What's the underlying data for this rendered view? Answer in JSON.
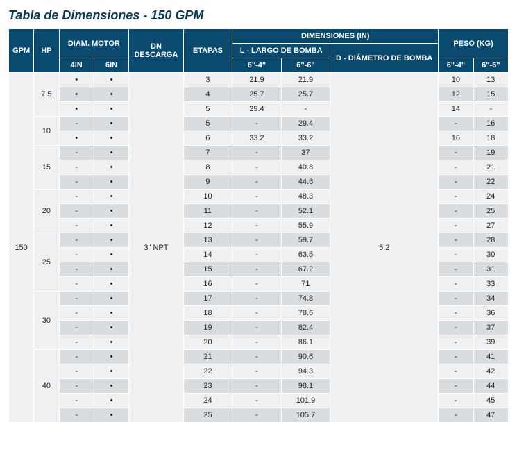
{
  "title": "Tabla de Dimensiones - 150 GPM",
  "headers": {
    "gpm": "GPM",
    "hp": "HP",
    "diam_motor": "DIAM. MOTOR",
    "dm_4in": "4IN",
    "dm_6in": "6IN",
    "dn_descarga": "DN DESCARGA",
    "etapas": "ETAPAS",
    "dimensiones": "DIMENSIONES (IN)",
    "l_largo": "L - LARGO DE BOMBA",
    "l_6_4": "6\"-4\"",
    "l_6_6": "6\"-6\"",
    "d_diam": "D - DIÁMETRO DE BOMBA",
    "peso": "PESO (KG)",
    "p_6_4": "6\"-4\"",
    "p_6_6": "6\"-6\""
  },
  "gpm_value": "150",
  "dn_value": "3\" NPT",
  "diam_value": "5.2",
  "hp_groups": [
    {
      "hp": "7.5",
      "span": 3
    },
    {
      "hp": "10",
      "span": 2
    },
    {
      "hp": "15",
      "span": 3
    },
    {
      "hp": "20",
      "span": 3
    },
    {
      "hp": "25",
      "span": 4
    },
    {
      "hp": "30",
      "span": 4
    },
    {
      "hp": "40",
      "span": 6
    }
  ],
  "rows": [
    {
      "dm4": "•",
      "dm6": "•",
      "etapas": "3",
      "l64": "21.9",
      "l66": "21.9",
      "p64": "10",
      "p66": "13"
    },
    {
      "dm4": "•",
      "dm6": "•",
      "etapas": "4",
      "l64": "25.7",
      "l66": "25.7",
      "p64": "12",
      "p66": "15"
    },
    {
      "dm4": "•",
      "dm6": "•",
      "etapas": "5",
      "l64": "29.4",
      "l66": "-",
      "p64": "14",
      "p66": "-"
    },
    {
      "dm4": "-",
      "dm6": "•",
      "etapas": "5",
      "l64": "-",
      "l66": "29.4",
      "p64": "-",
      "p66": "16"
    },
    {
      "dm4": "•",
      "dm6": "•",
      "etapas": "6",
      "l64": "33.2",
      "l66": "33.2",
      "p64": "16",
      "p66": "18"
    },
    {
      "dm4": "-",
      "dm6": "•",
      "etapas": "7",
      "l64": "-",
      "l66": "37",
      "p64": "-",
      "p66": "19"
    },
    {
      "dm4": "-",
      "dm6": "•",
      "etapas": "8",
      "l64": "-",
      "l66": "40.8",
      "p64": "-",
      "p66": "21"
    },
    {
      "dm4": "-",
      "dm6": "•",
      "etapas": "9",
      "l64": "-",
      "l66": "44.6",
      "p64": "-",
      "p66": "22"
    },
    {
      "dm4": "-",
      "dm6": "•",
      "etapas": "10",
      "l64": "-",
      "l66": "48.3",
      "p64": "-",
      "p66": "24"
    },
    {
      "dm4": "-",
      "dm6": "•",
      "etapas": "11",
      "l64": "-",
      "l66": "52.1",
      "p64": "-",
      "p66": "25"
    },
    {
      "dm4": "-",
      "dm6": "•",
      "etapas": "12",
      "l64": "-",
      "l66": "55.9",
      "p64": "-",
      "p66": "27"
    },
    {
      "dm4": "-",
      "dm6": "•",
      "etapas": "13",
      "l64": "-",
      "l66": "59.7",
      "p64": "-",
      "p66": "28"
    },
    {
      "dm4": "-",
      "dm6": "•",
      "etapas": "14",
      "l64": "-",
      "l66": "63.5",
      "p64": "-",
      "p66": "30"
    },
    {
      "dm4": "-",
      "dm6": "•",
      "etapas": "15",
      "l64": "-",
      "l66": "67.2",
      "p64": "-",
      "p66": "31"
    },
    {
      "dm4": "-",
      "dm6": "•",
      "etapas": "16",
      "l64": "-",
      "l66": "71",
      "p64": "-",
      "p66": "33"
    },
    {
      "dm4": "-",
      "dm6": "•",
      "etapas": "17",
      "l64": "-",
      "l66": "74.8",
      "p64": "-",
      "p66": "34"
    },
    {
      "dm4": "-",
      "dm6": "•",
      "etapas": "18",
      "l64": "-",
      "l66": "78.6",
      "p64": "-",
      "p66": "36"
    },
    {
      "dm4": "-",
      "dm6": "•",
      "etapas": "19",
      "l64": "-",
      "l66": "82.4",
      "p64": "-",
      "p66": "37"
    },
    {
      "dm4": "-",
      "dm6": "•",
      "etapas": "20",
      "l64": "-",
      "l66": "86.1",
      "p64": "-",
      "p66": "39"
    },
    {
      "dm4": "-",
      "dm6": "•",
      "etapas": "21",
      "l64": "-",
      "l66": "90.6",
      "p64": "-",
      "p66": "41"
    },
    {
      "dm4": "-",
      "dm6": "•",
      "etapas": "22",
      "l64": "-",
      "l66": "94.3",
      "p64": "-",
      "p66": "42"
    },
    {
      "dm4": "-",
      "dm6": "•",
      "etapas": "23",
      "l64": "-",
      "l66": "98.1",
      "p64": "-",
      "p66": "44"
    },
    {
      "dm4": "-",
      "dm6": "•",
      "etapas": "24",
      "l64": "-",
      "l66": "101.9",
      "p64": "-",
      "p66": "45"
    },
    {
      "dm4": "-",
      "dm6": "•",
      "etapas": "25",
      "l64": "-",
      "l66": "105.7",
      "p64": "-",
      "p66": "47"
    }
  ],
  "style": {
    "header_bg": "#0a4a6e",
    "header_fg": "#ffffff",
    "row_even_bg": "#f0f0f0",
    "row_odd_bg": "#d8dde2",
    "title_color": "#0a3a5a",
    "border_color": "#ffffff",
    "font_size_body": 11,
    "font_size_title": 18
  }
}
